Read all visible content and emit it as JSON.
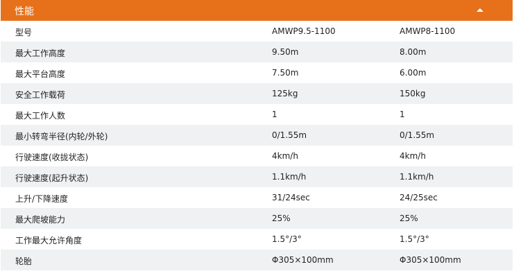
{
  "header": {
    "title": "性能",
    "icon": "collapse-triangle-up-icon",
    "color": "#E6711A"
  },
  "rows": [
    [
      "型号",
      "AMWP9.5-1100",
      "AMWP8-1100"
    ],
    [
      "最大工作高度",
      "9.50m",
      "8.00m"
    ],
    [
      "最大平台高度",
      "7.50m",
      "6.00m"
    ],
    [
      "安全工作载荷",
      "125kg",
      "150kg"
    ],
    [
      "最大工作人数",
      "1",
      "1"
    ],
    [
      "最小转弯半径(内轮/外轮)",
      "0/1.55m",
      "0/1.55m"
    ],
    [
      "行驶速度(收拢状态)",
      "4km/h",
      "4km/h"
    ],
    [
      "行驶速度(起升状态)",
      "1.1km/h",
      "1.1km/h"
    ],
    [
      "上升/下降速度",
      "31/24sec",
      "24/25sec"
    ],
    [
      "最大爬坡能力",
      "25%",
      "25%"
    ],
    [
      "工作最大允许角度",
      "1.5°/3°",
      "1.5°/3°"
    ],
    [
      "轮胎",
      "Φ305×100mm",
      "Φ305×100mm"
    ]
  ]
}
